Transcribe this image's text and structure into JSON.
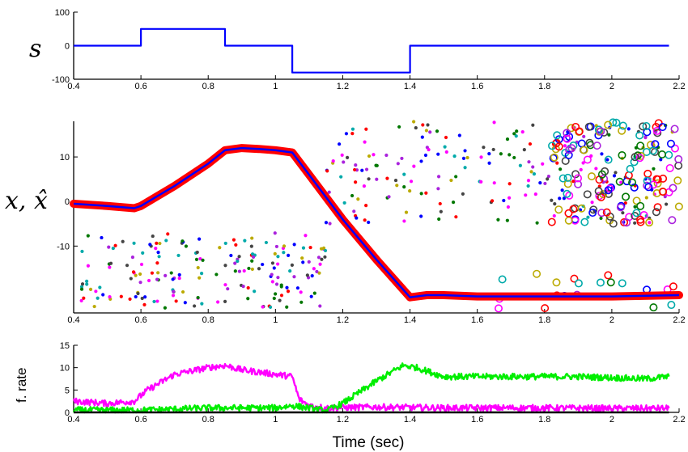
{
  "chart_data": [
    {
      "panel": "top",
      "type": "line",
      "ylabel": "s",
      "xlim": [
        0.4,
        2.2
      ],
      "ylim": [
        -100,
        100
      ],
      "yticks": [
        100,
        0,
        -100
      ],
      "xticks": [
        0.4,
        0.6,
        0.8,
        1,
        1.2,
        1.4,
        1.6,
        1.8,
        2,
        2.2
      ],
      "series": [
        {
          "color": "#0000ff",
          "x": [
            0.4,
            0.6,
            0.6,
            0.85,
            0.85,
            1.05,
            1.05,
            1.4,
            1.4,
            2.17
          ],
          "y": [
            0,
            0,
            50,
            50,
            0,
            0,
            -80,
            -80,
            0,
            0
          ]
        }
      ]
    },
    {
      "panel": "middle",
      "type": "scatter",
      "ylabel": "x, x̂",
      "xlim": [
        0.4,
        2.2
      ],
      "ylim": [
        -25,
        18
      ],
      "yticks": [
        10,
        0,
        -10
      ],
      "xticks": [
        0.4,
        0.6,
        0.8,
        1,
        1.2,
        1.4,
        1.6,
        1.8,
        2,
        2.2
      ],
      "colors": {
        "estimate": "#ff0000",
        "true": "#0000ff",
        "spikes": [
          "#0000ff",
          "#ff0000",
          "#00aaaa",
          "#aa22dd",
          "#007700",
          "#444444",
          "#bbaa00",
          "#ff00ff"
        ]
      },
      "series": [
        {
          "name_hidden": "trajectory",
          "x": [
            0.4,
            0.5,
            0.58,
            0.6,
            0.7,
            0.8,
            0.85,
            0.9,
            0.95,
            1.0,
            1.05,
            1.1,
            1.2,
            1.3,
            1.4,
            1.45,
            1.5,
            1.6,
            1.8,
            2.0,
            2.2
          ],
          "y": [
            -0.5,
            -1,
            -1.5,
            -1,
            3.5,
            8.5,
            11.5,
            12,
            11.8,
            11.5,
            11,
            6,
            -4,
            -13,
            -21.5,
            -21,
            -21,
            -21.3,
            -21.3,
            -21.3,
            -21
          ]
        }
      ],
      "scatter_regions": [
        {
          "x": [
            0.42,
            1.15
          ],
          "y": [
            -24,
            -7
          ],
          "count": 190,
          "marker": "dot"
        },
        {
          "x": [
            1.15,
            2.19
          ],
          "y": [
            -5,
            18
          ],
          "count": 210,
          "marker": "dot"
        },
        {
          "x": [
            1.82,
            2.2
          ],
          "y": [
            -5,
            18
          ],
          "count": 150,
          "marker": "ring"
        },
        {
          "x": [
            1.6,
            2.2
          ],
          "y": [
            -24,
            -16
          ],
          "count": 20,
          "marker": "ring"
        }
      ]
    },
    {
      "panel": "bottom",
      "type": "line",
      "ylabel": "f. rate",
      "xlabel": "Time (sec)",
      "xlim": [
        0.4,
        2.2
      ],
      "ylim": [
        0,
        15
      ],
      "yticks": [
        15,
        10,
        5,
        0
      ],
      "xticks": [
        0.4,
        0.6,
        0.8,
        1,
        1.2,
        1.4,
        1.6,
        1.8,
        2,
        2.2
      ],
      "series": [
        {
          "color": "#ff00ff",
          "x": [
            0.4,
            0.5,
            0.58,
            0.62,
            0.7,
            0.8,
            0.85,
            0.9,
            1.0,
            1.05,
            1.07,
            1.1,
            1.15,
            1.3,
            1.5,
            1.8,
            2.0,
            2.17
          ],
          "y": [
            2.5,
            2.0,
            2.5,
            5,
            8.5,
            10,
            10.5,
            9.5,
            8.5,
            8,
            3,
            1.5,
            1,
            1.2,
            1,
            1,
            0.9,
            0.9
          ]
        },
        {
          "color": "#00ee00",
          "x": [
            0.4,
            0.6,
            0.8,
            1.0,
            1.05,
            1.1,
            1.15,
            1.2,
            1.3,
            1.38,
            1.42,
            1.5,
            1.7,
            1.9,
            2.1,
            2.17
          ],
          "y": [
            0.5,
            0.5,
            1,
            1,
            1.5,
            1,
            0.3,
            2,
            7,
            10.5,
            10,
            8,
            8,
            8,
            7.5,
            8
          ]
        },
        {
          "color": "#000000",
          "x": [
            0.4,
            2.17
          ],
          "y": [
            0,
            0
          ]
        }
      ]
    }
  ],
  "labels": {
    "s": "s",
    "x_hat": "x, x̂",
    "f_rate": "f. rate",
    "xlabel": "Time (sec)"
  }
}
